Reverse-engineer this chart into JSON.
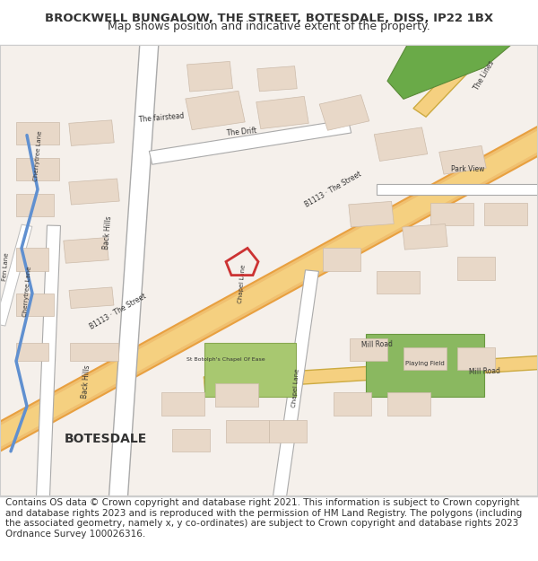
{
  "title": "BROCKWELL BUNGALOW, THE STREET, BOTESDALE, DISS, IP22 1BX",
  "subtitle": "Map shows position and indicative extent of the property.",
  "copyright_text": "Contains OS data © Crown copyright and database right 2021. This information is subject to Crown copyright and database rights 2023 and is reproduced with the permission of HM Land Registry. The polygons (including the associated geometry, namely x, y co-ordinates) are subject to Crown copyright and database rights 2023 Ordnance Survey 100026316.",
  "title_fontsize": 9.5,
  "subtitle_fontsize": 9,
  "copyright_fontsize": 7.5,
  "map_bg": "#f5f0eb",
  "road_main_color": "#f0c070",
  "road_secondary_color": "#ffffff",
  "road_outline_color": "#bbbbbb",
  "road_highlight_color": "#e8a040",
  "building_color": "#e8d8c8",
  "building_outline": "#ccbbaa",
  "green_area_color": "#a8c870",
  "blue_line_color": "#6090d0",
  "red_polygon_color": "#cc3333",
  "text_dark": "#333333",
  "border_color": "#cccccc",
  "title_area_bg": "#ffffff",
  "copyright_area_bg": "#ffffff"
}
